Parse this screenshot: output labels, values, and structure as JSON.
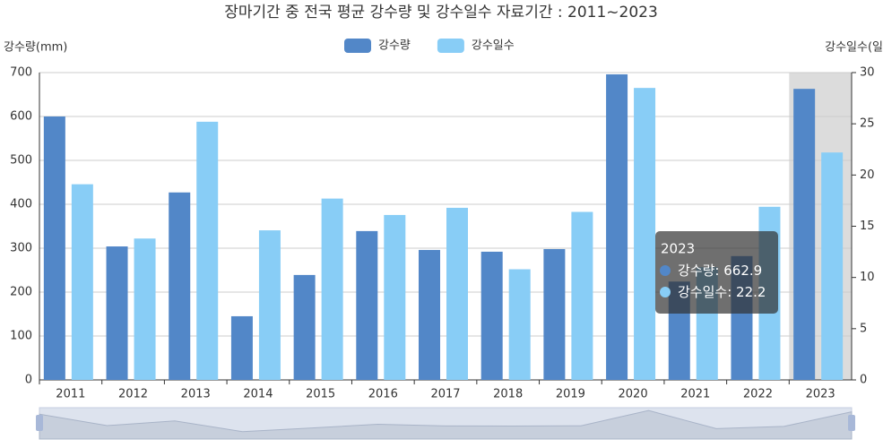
{
  "chart_data": {
    "type": "bar",
    "title": "장마기간 중 전국 평균 강수량 및 강수일수 자료기간 : 2011~2023",
    "y_label": "강수량(mm)",
    "y2_label": "강수일수(일",
    "categories": [
      "2011",
      "2012",
      "2013",
      "2014",
      "2015",
      "2016",
      "2017",
      "2018",
      "2019",
      "2020",
      "2021",
      "2022",
      "2023"
    ],
    "series": [
      {
        "name": "강수량",
        "color": "#5287c8",
        "values": [
          600,
          304,
          427,
          145,
          239,
          339,
          296,
          292,
          298,
          696,
          224,
          282,
          662.9
        ]
      },
      {
        "name": "강수일수",
        "color": "#88cdf6",
        "axis": "y2",
        "values": [
          19.1,
          13.8,
          25.2,
          14.6,
          17.7,
          16.1,
          16.8,
          10.8,
          16.4,
          28.5,
          11,
          16.9,
          22.2
        ]
      }
    ],
    "ylim": [
      0,
      700
    ],
    "yticks": [
      0,
      100,
      200,
      300,
      400,
      500,
      600,
      700
    ],
    "y2lim": [
      0,
      30
    ],
    "y2ticks": [
      0,
      5,
      10,
      15,
      20,
      25,
      30
    ],
    "grid": true,
    "legend": "top",
    "tooltip": {
      "title": "2023",
      "items": [
        {
          "name": "강수량",
          "value": 662.9
        },
        {
          "name": "강수일수",
          "value": 22.2
        }
      ]
    }
  }
}
